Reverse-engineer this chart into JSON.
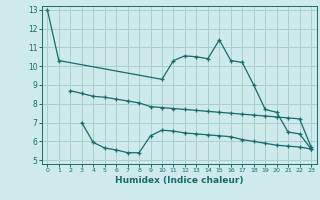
{
  "xlabel": "Humidex (Indice chaleur)",
  "bg_color": "#ceeaea",
  "grid_color": "#aacfcf",
  "line_color": "#1a6b6b",
  "xlim": [
    -0.5,
    23.5
  ],
  "ylim": [
    4.8,
    13.2
  ],
  "yticks": [
    5,
    6,
    7,
    8,
    9,
    10,
    11,
    12,
    13
  ],
  "xticks": [
    0,
    1,
    2,
    3,
    4,
    5,
    6,
    7,
    8,
    9,
    10,
    11,
    12,
    13,
    14,
    15,
    16,
    17,
    18,
    19,
    20,
    21,
    22,
    23
  ],
  "line1_x": [
    0,
    1,
    10,
    11,
    12,
    13,
    14,
    15,
    16,
    17,
    18,
    19,
    20,
    21,
    22,
    23
  ],
  "line1_y": [
    13.0,
    10.3,
    9.3,
    10.3,
    10.55,
    10.5,
    10.4,
    11.4,
    10.3,
    10.2,
    9.0,
    7.7,
    7.55,
    6.5,
    6.4,
    5.6
  ],
  "line2_x": [
    2,
    3,
    4,
    5,
    6,
    7,
    8,
    9,
    10,
    11,
    12,
    13,
    14,
    15,
    16,
    17,
    18,
    19,
    20,
    21,
    22,
    23
  ],
  "line2_y": [
    8.7,
    8.55,
    8.4,
    8.35,
    8.25,
    8.15,
    8.05,
    7.85,
    7.8,
    7.75,
    7.7,
    7.65,
    7.6,
    7.55,
    7.5,
    7.45,
    7.4,
    7.35,
    7.3,
    7.25,
    7.2,
    5.7
  ],
  "line3_x": [
    3,
    4,
    5,
    6,
    7,
    8,
    9,
    10,
    11,
    12,
    13,
    14,
    15,
    16,
    17,
    18,
    19,
    20,
    21,
    22,
    23
  ],
  "line3_y": [
    7.0,
    5.95,
    5.65,
    5.55,
    5.4,
    5.4,
    6.3,
    6.6,
    6.55,
    6.45,
    6.4,
    6.35,
    6.3,
    6.25,
    6.1,
    6.0,
    5.9,
    5.8,
    5.75,
    5.7,
    5.6
  ]
}
